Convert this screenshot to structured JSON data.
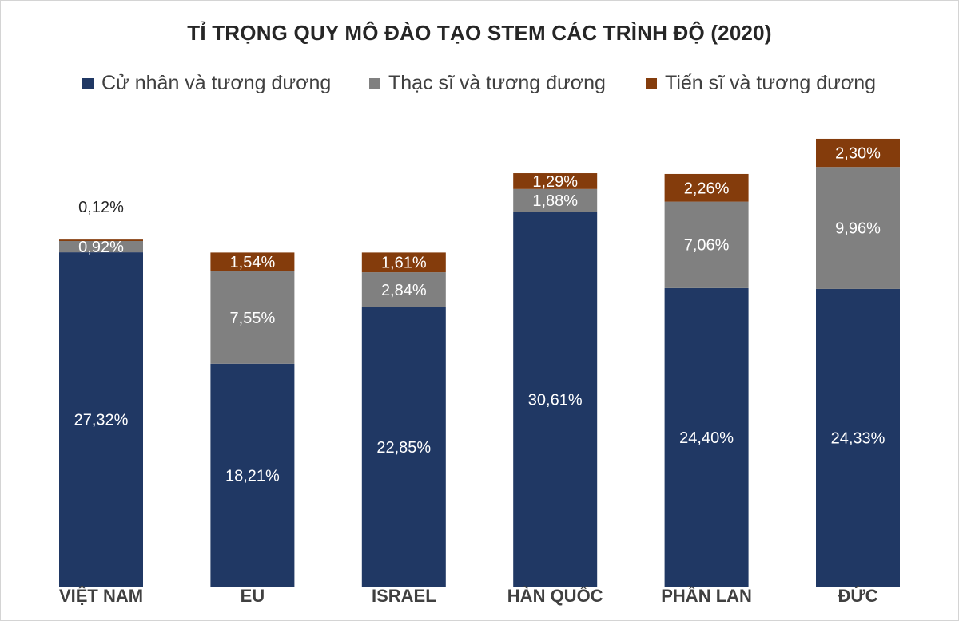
{
  "chart_data": {
    "type": "bar",
    "stacked": true,
    "title": "TỈ TRỌNG QUY MÔ ĐÀO TẠO STEM CÁC TRÌNH ĐỘ (2020)",
    "categories": [
      "VIỆT NAM",
      "EU",
      "ISRAEL",
      "HÀN QUỐC",
      "PHẦN LAN",
      "ĐỨC"
    ],
    "series": [
      {
        "name": "Cử nhân và tương đương",
        "color": "#203864",
        "values": [
          27.32,
          18.21,
          22.85,
          30.61,
          24.4,
          24.33
        ],
        "labels": [
          "27,32%",
          "18,21%",
          "22,85%",
          "30,61%",
          "24,40%",
          "24,33%"
        ]
      },
      {
        "name": "Thạc sĩ và tương đương",
        "color": "#808080",
        "values": [
          0.92,
          7.55,
          2.84,
          1.88,
          7.06,
          9.96
        ],
        "labels": [
          "0,92%",
          "7,55%",
          "2,84%",
          "1,88%",
          "7,06%",
          "9,96%"
        ]
      },
      {
        "name": "Tiến sĩ và tương đương",
        "color": "#843c0c",
        "values": [
          0.12,
          1.54,
          1.61,
          1.29,
          2.26,
          2.3
        ],
        "labels": [
          "0,12%",
          "1,54%",
          "1,61%",
          "1,29%",
          "2,26%",
          "2,30%"
        ]
      }
    ],
    "ylim": [
      0,
      37.5
    ],
    "legend_position": "top",
    "grid": false
  }
}
